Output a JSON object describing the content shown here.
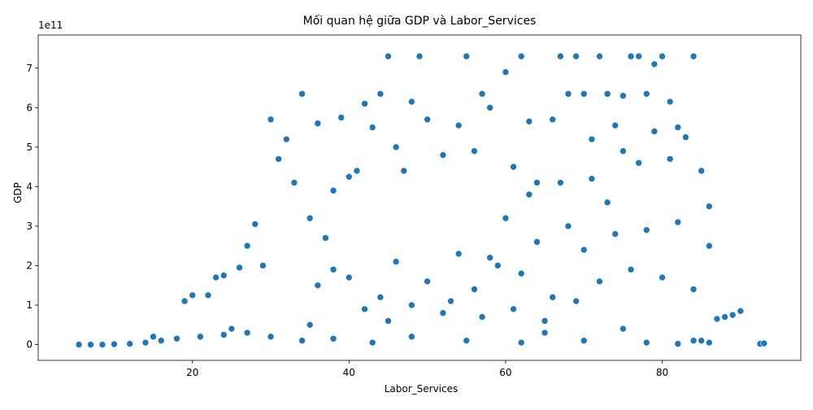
{
  "chart_data": {
    "type": "scatter",
    "title": "Mối quan hệ giữa GDP và Labor_Services",
    "x_label": "Labor_Services",
    "y_label": "GDP",
    "y_offset_label": "1e11",
    "color": "#1f77b4",
    "xlim": [
      0.3,
      97.7
    ],
    "ylim": [
      -0.4,
      7.84
    ],
    "xticks": [
      20,
      40,
      60,
      80
    ],
    "yticks": [
      0,
      1,
      2,
      3,
      4,
      5,
      6,
      7
    ],
    "x": [
      5.5,
      7,
      8.5,
      10,
      12,
      14,
      16,
      18,
      21,
      24,
      27,
      30,
      34,
      38,
      43,
      48,
      55,
      62,
      70,
      78,
      82,
      84,
      86,
      15,
      25,
      35,
      45,
      65,
      75,
      85,
      19,
      20,
      22,
      23,
      24,
      26,
      27,
      28,
      29,
      30,
      31,
      32,
      33,
      34,
      35,
      36,
      37,
      38,
      39,
      40,
      41,
      42,
      43,
      44,
      45,
      46,
      47,
      48,
      49,
      50,
      52,
      54,
      55,
      56,
      57,
      58,
      60,
      61,
      62,
      63,
      64,
      66,
      67,
      68,
      69,
      70,
      71,
      72,
      73,
      74,
      75,
      76,
      77,
      78,
      79,
      80,
      81,
      82,
      83,
      84,
      85,
      86,
      36,
      38,
      40,
      42,
      44,
      46,
      48,
      50,
      52,
      54,
      56,
      58,
      60,
      62,
      64,
      66,
      68,
      70,
      72,
      74,
      76,
      78,
      80,
      82,
      84,
      86,
      57,
      61,
      65,
      69,
      71,
      73,
      77,
      79,
      59,
      63,
      67,
      75,
      81,
      53,
      87,
      88,
      89,
      90,
      92.5,
      93
    ],
    "values": [
      0,
      0,
      0,
      0.01,
      0.02,
      0.05,
      0.1,
      0.15,
      0.2,
      0.25,
      0.3,
      0.2,
      0.1,
      0.15,
      0.05,
      0.2,
      0.1,
      0.05,
      0.1,
      0.05,
      0.02,
      0.1,
      0.05,
      0.2,
      0.4,
      0.5,
      0.6,
      0.3,
      0.4,
      0.1,
      1.1,
      1.25,
      1.25,
      1.7,
      1.75,
      1.95,
      2.5,
      3.05,
      2.0,
      5.7,
      4.7,
      5.2,
      4.1,
      6.35,
      3.2,
      5.6,
      2.7,
      3.9,
      5.75,
      4.25,
      4.4,
      6.1,
      5.5,
      6.35,
      7.3,
      5.0,
      4.4,
      6.15,
      7.3,
      5.7,
      4.8,
      5.55,
      7.3,
      4.9,
      6.35,
      6.0,
      6.9,
      4.5,
      7.3,
      5.65,
      4.1,
      5.7,
      7.3,
      6.35,
      7.3,
      6.35,
      5.2,
      7.3,
      6.35,
      5.55,
      6.3,
      7.3,
      7.3,
      6.35,
      7.1,
      7.3,
      6.15,
      5.5,
      5.25,
      7.3,
      4.4,
      3.5,
      1.5,
      1.9,
      1.7,
      0.9,
      1.2,
      2.1,
      1.0,
      1.6,
      0.8,
      2.3,
      1.4,
      2.2,
      3.2,
      1.8,
      2.6,
      1.2,
      3.0,
      2.4,
      1.6,
      2.8,
      1.9,
      2.9,
      1.7,
      3.1,
      1.4,
      2.5,
      0.7,
      0.9,
      0.6,
      1.1,
      4.2,
      3.6,
      4.6,
      5.4,
      2.0,
      3.8,
      4.1,
      4.9,
      4.7,
      1.1,
      0.65,
      0.7,
      0.75,
      0.85,
      0.02,
      0.03
    ]
  }
}
